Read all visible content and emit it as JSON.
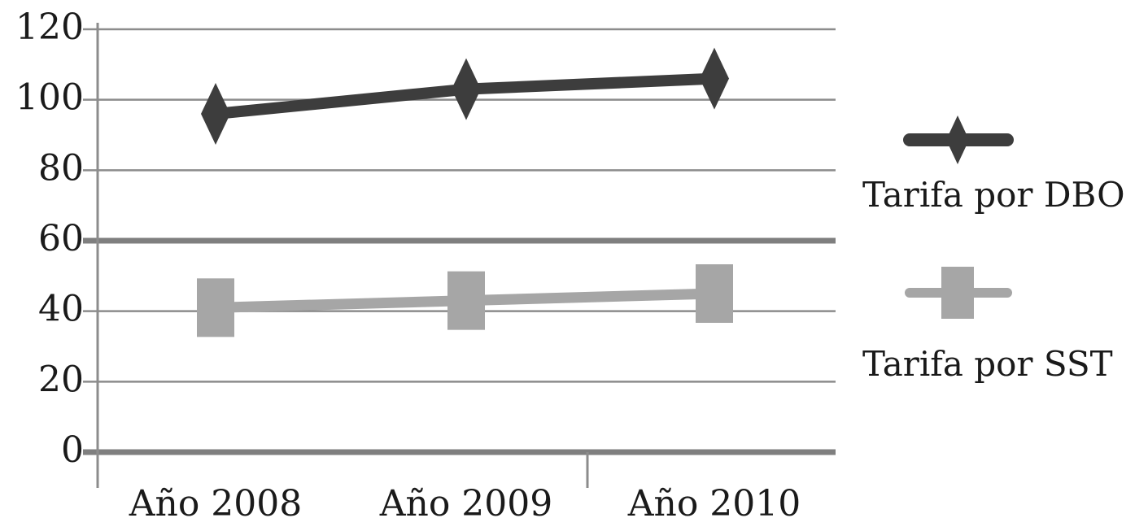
{
  "chart_data": {
    "type": "line",
    "categories": [
      "Año 2008",
      "Año 2009",
      "Año 2010"
    ],
    "series": [
      {
        "name": "Tarifa por DBO",
        "values": [
          96,
          103,
          106
        ],
        "color": "#3d3d3d",
        "marker": "diamond"
      },
      {
        "name": "Tarifa por SST",
        "values": [
          41,
          43,
          45
        ],
        "color": "#a6a6a6",
        "marker": "square"
      }
    ],
    "y_ticks": [
      "0",
      "20",
      "40",
      "60",
      "80",
      "100",
      "120"
    ],
    "ylim": [
      0,
      120
    ],
    "grid": true,
    "legend_position": "right"
  }
}
